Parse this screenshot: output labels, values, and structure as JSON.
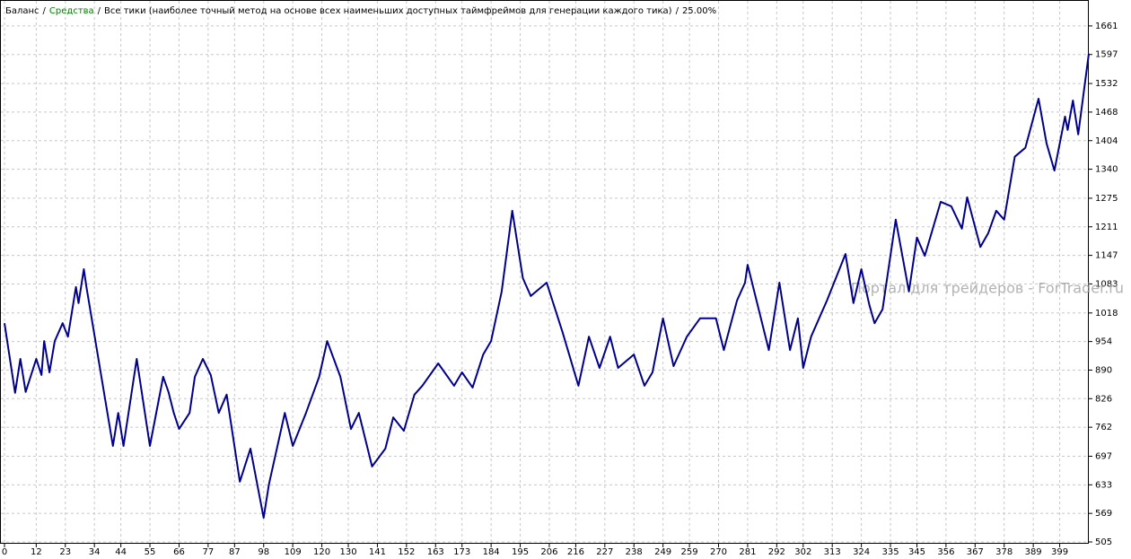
{
  "chart_data": {
    "type": "line",
    "labels": [
      {
        "text": "Баланс",
        "color": "#000000"
      },
      {
        "text": "Средства",
        "color": "#008000"
      },
      {
        "text": "Все тики (наиболее точный метод на основе всех наименьших доступных таймфреймов для генерации каждого тика)",
        "color": "#000000"
      },
      {
        "text": "25.00%",
        "color": "#000000"
      }
    ],
    "separator": "/",
    "watermark": "Портал для трейдеров - ForTrader.ru",
    "x": [
      0,
      4,
      6,
      8,
      12,
      14,
      15,
      17,
      19,
      22,
      24,
      27,
      28,
      30,
      31,
      41,
      43,
      45,
      50,
      55,
      60,
      62,
      64,
      66,
      70,
      72,
      75,
      78,
      81,
      84,
      89,
      93,
      98,
      100,
      106,
      109,
      114,
      119,
      122,
      127,
      131,
      134,
      139,
      144,
      147,
      151,
      155,
      158,
      164,
      170,
      173,
      177,
      181,
      184,
      188,
      192,
      196,
      199,
      205,
      211,
      217,
      221,
      225,
      229,
      232,
      238,
      242,
      245,
      249,
      253,
      258,
      263,
      269,
      272,
      277,
      280,
      281,
      289,
      293,
      297,
      300,
      302,
      305,
      311,
      318,
      321,
      324,
      327,
      329,
      332,
      337,
      342,
      345,
      348,
      354,
      358,
      362,
      364,
      369,
      372,
      375,
      378,
      382,
      386,
      391,
      394,
      397,
      401,
      402,
      404,
      406,
      410
    ],
    "series": [
      {
        "name": "Баланс",
        "color": "#00008b",
        "values": [
          995,
          839,
          915,
          841,
          915,
          879,
          955,
          885,
          955,
          995,
          965,
          1076,
          1040,
          1116,
          1076,
          720,
          794,
          720,
          915,
          720,
          875,
          841,
          794,
          758,
          794,
          875,
          915,
          879,
          794,
          835,
          640,
          714,
          559,
          634,
          794,
          720,
          794,
          875,
          955,
          875,
          758,
          794,
          674,
          714,
          784,
          754,
          835,
          855,
          905,
          855,
          885,
          851,
          925,
          955,
          1066,
          1247,
          1096,
          1056,
          1086,
          975,
          855,
          965,
          895,
          965,
          895,
          925,
          855,
          885,
          1006,
          899,
          965,
          1006,
          1006,
          935,
          1046,
          1086,
          1126,
          935,
          1086,
          935,
          1006,
          895,
          965,
          1046,
          1150,
          1040,
          1116,
          1036,
          995,
          1026,
          1227,
          1066,
          1187,
          1146,
          1267,
          1257,
          1207,
          1277,
          1166,
          1197,
          1247,
          1227,
          1368,
          1388,
          1498,
          1398,
          1337,
          1458,
          1428,
          1494,
          1418,
          1599
        ]
      }
    ],
    "xlim": [
      0,
      410
    ],
    "xticks": [
      0,
      12,
      23,
      34,
      44,
      55,
      66,
      77,
      87,
      98,
      109,
      120,
      130,
      141,
      152,
      163,
      173,
      184,
      195,
      206,
      216,
      227,
      238,
      249,
      259,
      270,
      281,
      292,
      302,
      313,
      324,
      335,
      345,
      356,
      367,
      378,
      389,
      399
    ],
    "ylim": [
      501,
      1703
    ],
    "yticks": [
      505,
      569,
      633,
      697,
      762,
      826,
      890,
      954,
      1018,
      1083,
      1147,
      1211,
      1275,
      1340,
      1404,
      1468,
      1532,
      1597,
      1661
    ],
    "grid": true
  }
}
